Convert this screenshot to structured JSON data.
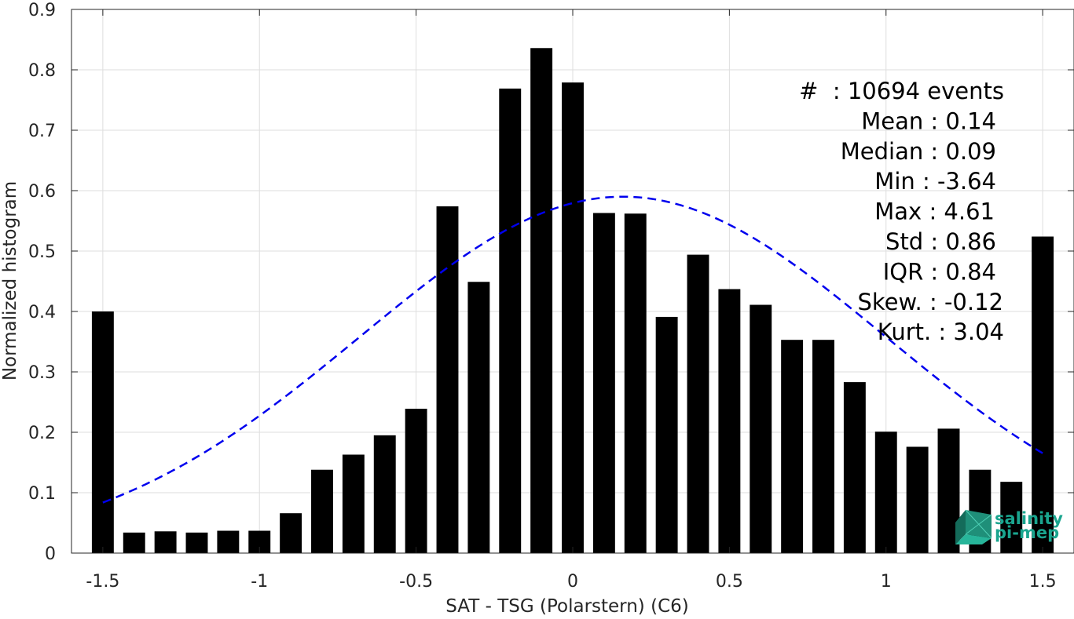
{
  "chart_data": {
    "type": "bar",
    "xlabel": "SAT - TSG (Polarstern) (C6)",
    "ylabel": "Normalized histogram",
    "xlim": [
      -1.6,
      1.6
    ],
    "ylim": [
      0,
      0.9
    ],
    "grid": true,
    "x_ticks": [
      -1.5,
      -1,
      -0.5,
      0,
      0.5,
      1,
      1.5
    ],
    "x_tick_labels": [
      "-1.5",
      "-1",
      "-0.5",
      "0",
      "0.5",
      "1",
      "1.5"
    ],
    "y_ticks": [
      0,
      0.1,
      0.2,
      0.3,
      0.4,
      0.5,
      0.6,
      0.7,
      0.8,
      0.9
    ],
    "y_tick_labels": [
      "0",
      "0.1",
      "0.2",
      "0.3",
      "0.4",
      "0.5",
      "0.6",
      "0.7",
      "0.8",
      "0.9"
    ],
    "bar_color": "#000000",
    "bin_width": 0.1,
    "bars": {
      "x": [
        -1.5,
        -1.4,
        -1.3,
        -1.2,
        -1.1,
        -1.0,
        -0.9,
        -0.8,
        -0.7,
        -0.6,
        -0.5,
        -0.4,
        -0.3,
        -0.2,
        -0.1,
        0.0,
        0.1,
        0.2,
        0.3,
        0.4,
        0.5,
        0.6,
        0.7,
        0.8,
        0.9,
        1.0,
        1.1,
        1.2,
        1.3,
        1.4,
        1.5
      ],
      "values": [
        0.4,
        0.034,
        0.036,
        0.034,
        0.037,
        0.037,
        0.066,
        0.138,
        0.163,
        0.195,
        0.239,
        0.574,
        0.449,
        0.769,
        0.836,
        0.779,
        0.563,
        0.562,
        0.391,
        0.494,
        0.437,
        0.411,
        0.353,
        0.353,
        0.283,
        0.201,
        0.176,
        0.206,
        0.138,
        0.118,
        0.524
      ]
    },
    "fit_curve": {
      "type": "gaussian",
      "style": "dashed",
      "color": "#0000ee",
      "mean": 0.16,
      "std": 0.84,
      "peak": 0.59,
      "x_range": [
        -1.5,
        1.5
      ]
    },
    "stats_box": {
      "position": "top-right",
      "lines": [
        "#  : 10694 events",
        "Mean : 0.14",
        "Median : 0.09",
        "Min : -3.64",
        "Max : 4.61",
        "Std : 0.86",
        "IQR : 0.84",
        "Skew. : -0.12",
        "Kurt. : 3.04"
      ]
    },
    "logo": {
      "position": "bottom-right",
      "line1": "salinity",
      "line2": "pi-mep",
      "color": "#1aa58f"
    }
  }
}
